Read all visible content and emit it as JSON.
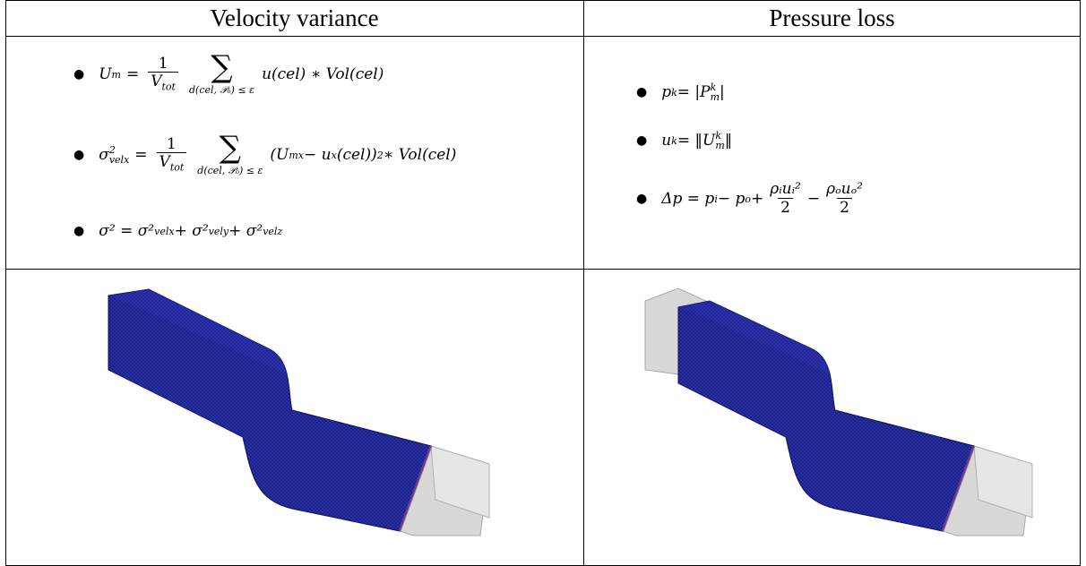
{
  "table": {
    "headers": [
      "Velocity variance",
      "Pressure loss"
    ]
  },
  "velocity_variance": {
    "formula_1_lhs": "U",
    "formula_1_lhs_sub": "m",
    "formula_1_frac_num": "1",
    "formula_1_frac_den": "V",
    "formula_1_frac_den_sub": "tot",
    "formula_1_sum_limit": "d(cel, 𝒫ₒ) ≤ ε",
    "formula_1_body": "u(cel) ∗ Vol(cel)",
    "formula_2_lhs": "σ",
    "formula_2_lhs_sup": "2",
    "formula_2_lhs_sub": "velx",
    "formula_2_frac_num": "1",
    "formula_2_frac_den": "V",
    "formula_2_frac_den_sub": "tot",
    "formula_2_sum_limit": "d(cel, 𝒫ₒ) ≤ ε",
    "formula_2_body": "(U",
    "formula_2_body_sub": "mx",
    "formula_2_body_mid": " − u",
    "formula_2_body_mid_sub": "x",
    "formula_2_body_tail": "(cel))",
    "formula_2_body_tail_sup": "2",
    "formula_2_body_end": " ∗ Vol(cel)",
    "formula_3_text": "σ² = σ²",
    "formula_3_sub1": "velx",
    "formula_3_mid1": " + σ²",
    "formula_3_sub2": "vely",
    "formula_3_mid2": " + σ²",
    "formula_3_sub3": "velz"
  },
  "pressure_loss": {
    "formula_1_lhs": "p",
    "formula_1_lhs_sub": "k",
    "formula_1_rhs": " = |P",
    "formula_1_rhs_sup": "k",
    "formula_1_rhs_sub": "m",
    "formula_1_rhs_end": "|",
    "formula_2_lhs": "u",
    "formula_2_lhs_sub": "k",
    "formula_2_rhs": " = ‖U",
    "formula_2_rhs_sup": "k",
    "formula_2_rhs_sub": "m",
    "formula_2_rhs_end": "‖",
    "formula_3_lhs": "Δp = p",
    "formula_3_sub_i": "i",
    "formula_3_mid": " − p",
    "formula_3_sub_o": "o",
    "formula_3_plus": " + ",
    "formula_3_frac1_num": "ρᵢuᵢ²",
    "formula_3_frac1_den": "2",
    "formula_3_minus": " − ",
    "formula_3_frac2_num": "ρₒuₒ²",
    "formula_3_frac2_den": "2"
  },
  "colors": {
    "duct_mesh": "#1a1f8c",
    "duct_mesh_dark": "#0d1166",
    "duct_outlet": "#d8d8d8",
    "duct_outlet_edge": "#a8a8a8",
    "duct_outlet_interface": "#8a4a8a"
  }
}
